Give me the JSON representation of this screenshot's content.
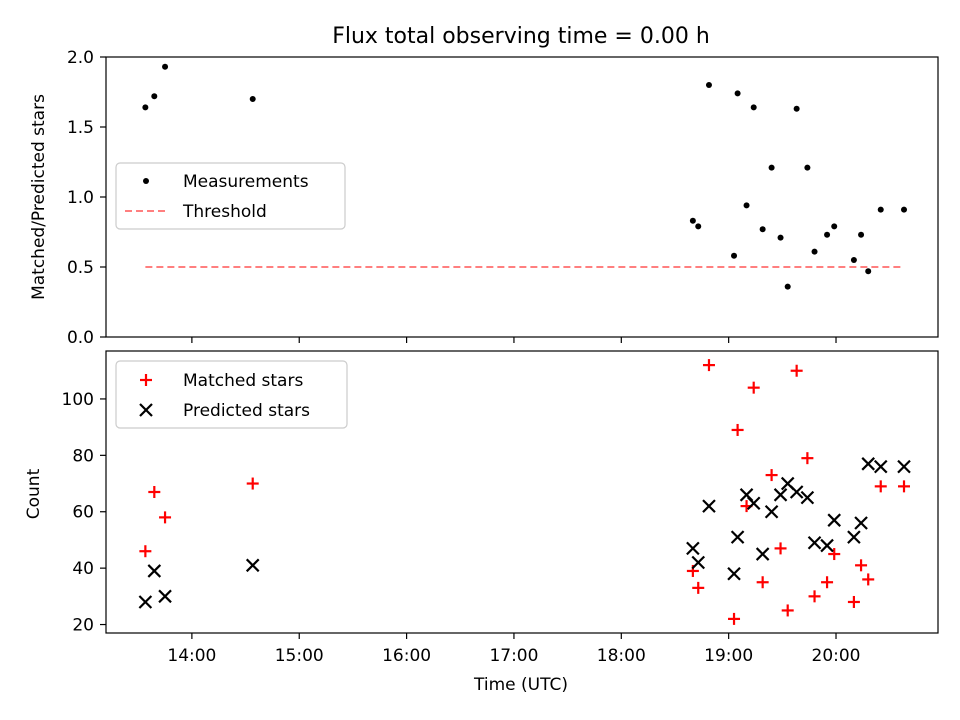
{
  "chart_data": [
    {
      "type": "scatter",
      "title": "Flux total observing time = 0.00 h",
      "xlabel": "",
      "ylabel": "Matched/Predicted stars",
      "xlim": [
        "13:12",
        "20:57"
      ],
      "ylim": [
        0,
        2.0
      ],
      "yticks": [
        "0.0",
        "0.5",
        "1.0",
        "1.5",
        "2.0"
      ],
      "legend_position": "center-left",
      "series": [
        {
          "name": "Measurements",
          "marker": "dot",
          "color": "#000000",
          "x": [
            "13:34",
            "13:39",
            "13:45",
            "14:34",
            "18:40",
            "18:43",
            "18:49",
            "19:03",
            "19:05",
            "19:10",
            "19:14",
            "19:19",
            "19:24",
            "19:29",
            "19:33",
            "19:38",
            "19:44",
            "19:48",
            "19:55",
            "19:59",
            "20:10",
            "20:14",
            "20:18",
            "20:25",
            "20:38"
          ],
          "y": [
            1.64,
            1.72,
            1.93,
            1.7,
            0.83,
            0.79,
            1.8,
            0.58,
            1.74,
            0.94,
            1.64,
            0.77,
            1.21,
            0.71,
            0.36,
            1.63,
            1.21,
            0.61,
            0.73,
            0.79,
            0.55,
            0.73,
            0.47,
            0.91,
            0.91
          ]
        },
        {
          "name": "Threshold",
          "style": "dashed-line",
          "color": "#ff7f7f",
          "x": [
            "13:34",
            "20:38"
          ],
          "y": [
            0.5,
            0.5
          ]
        }
      ]
    },
    {
      "type": "scatter",
      "title": "",
      "xlabel": "Time (UTC)",
      "ylabel": "Count",
      "xlim": [
        "13:12",
        "20:57"
      ],
      "ylim": [
        17,
        117
      ],
      "xticks": [
        "14:00",
        "15:00",
        "16:00",
        "17:00",
        "18:00",
        "19:00",
        "20:00"
      ],
      "yticks": [
        "20",
        "40",
        "60",
        "80",
        "100"
      ],
      "legend_position": "upper-left",
      "series": [
        {
          "name": "Matched stars",
          "marker": "plus",
          "color": "#ff0000",
          "x": [
            "13:34",
            "13:39",
            "13:45",
            "14:34",
            "18:40",
            "18:43",
            "18:49",
            "19:03",
            "19:05",
            "19:10",
            "19:14",
            "19:19",
            "19:24",
            "19:29",
            "19:33",
            "19:38",
            "19:44",
            "19:48",
            "19:55",
            "19:59",
            "20:10",
            "20:14",
            "20:18",
            "20:25",
            "20:38"
          ],
          "y": [
            46,
            67,
            58,
            70,
            39,
            33,
            112,
            22,
            89,
            62,
            104,
            35,
            73,
            47,
            25,
            110,
            79,
            30,
            35,
            45,
            28,
            41,
            36,
            69,
            69
          ]
        },
        {
          "name": "Predicted stars",
          "marker": "x",
          "color": "#000000",
          "x": [
            "13:34",
            "13:39",
            "13:45",
            "14:34",
            "18:40",
            "18:43",
            "18:49",
            "19:03",
            "19:05",
            "19:10",
            "19:14",
            "19:19",
            "19:24",
            "19:29",
            "19:33",
            "19:38",
            "19:44",
            "19:48",
            "19:55",
            "19:59",
            "20:10",
            "20:14",
            "20:18",
            "20:25",
            "20:38"
          ],
          "y": [
            28,
            39,
            30,
            41,
            47,
            42,
            62,
            38,
            51,
            66,
            63,
            45,
            60,
            66,
            70,
            67,
            65,
            49,
            48,
            57,
            51,
            56,
            77,
            76,
            76
          ]
        }
      ]
    }
  ]
}
